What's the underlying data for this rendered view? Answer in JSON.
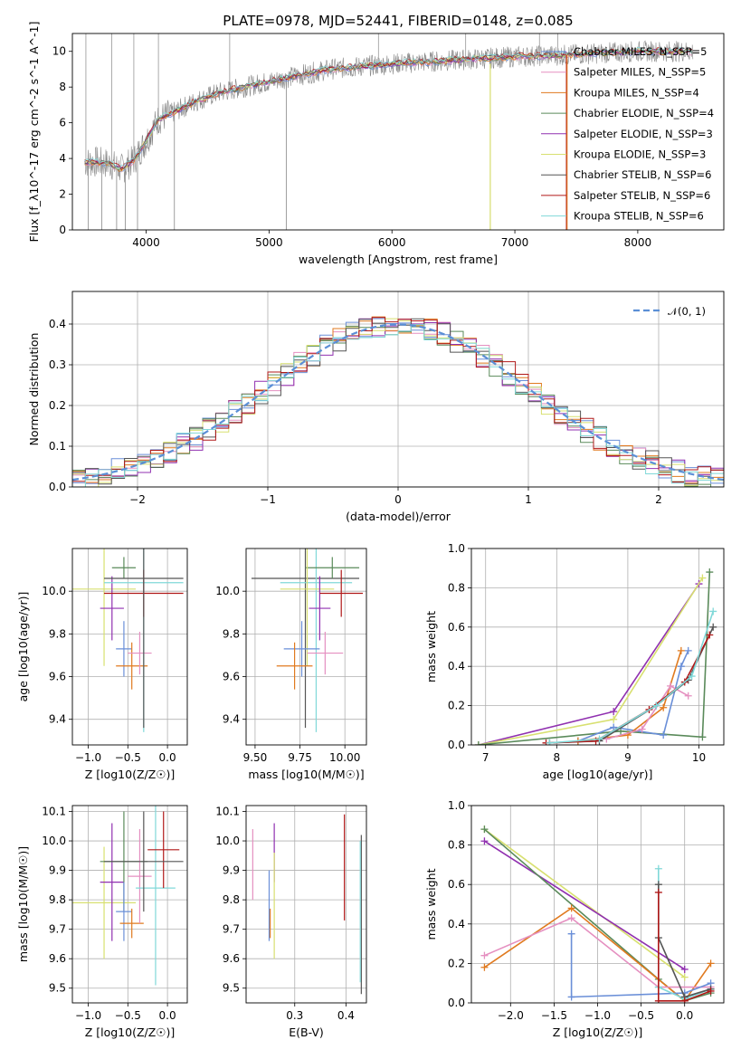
{
  "figure_title": "PLATE=0978, MJD=52441, FIBERID=0148, z=0.085",
  "colors": {
    "chabrier_miles": "#6a8fd8",
    "salpeter_miles": "#e58fc0",
    "kroupa_miles": "#e07a1f",
    "chabrier_elodie": "#5a8a5a",
    "salpeter_elodie": "#9030b0",
    "kroupa_elodie": "#d8e070",
    "chabrier_stelib": "#555555",
    "salpeter_stelib": "#b01818",
    "kroupa_stelib": "#80d8d8",
    "data": "#888888",
    "gauss": "#5b8fd6"
  },
  "chart_data": [
    {
      "id": "spectrum",
      "type": "line",
      "xlabel": "wavelength [Angstrom, rest frame]",
      "ylabel": "Flux [f_λ10^-17 erg cm^-2 s^-1 A^-1]",
      "xlim": [
        3400,
        8700
      ],
      "ylim": [
        0,
        11
      ],
      "xticks": [
        4000,
        5000,
        6000,
        7000,
        8000
      ],
      "yticks": [
        0,
        2,
        4,
        6,
        8,
        10
      ],
      "legend": {
        "position": "right",
        "entries": [
          {
            "name": "Chabrier MILES, N_SSP=5",
            "color_key": "chabrier_miles"
          },
          {
            "name": "Salpeter MILES, N_SSP=5",
            "color_key": "salpeter_miles"
          },
          {
            "name": "Kroupa MILES, N_SSP=4",
            "color_key": "kroupa_miles"
          },
          {
            "name": "Chabrier ELODIE, N_SSP=4",
            "color_key": "chabrier_elodie"
          },
          {
            "name": "Salpeter ELODIE, N_SSP=3",
            "color_key": "salpeter_elodie"
          },
          {
            "name": "Kroupa ELODIE, N_SSP=3",
            "color_key": "kroupa_elodie"
          },
          {
            "name": "Chabrier STELIB, N_SSP=6",
            "color_key": "chabrier_stelib"
          },
          {
            "name": "Salpeter STELIB, N_SSP=6",
            "color_key": "salpeter_stelib"
          },
          {
            "name": "Kroupa STELIB, N_SSP=6",
            "color_key": "kroupa_stelib"
          }
        ]
      },
      "continuum": {
        "x": [
          3500,
          3600,
          3700,
          3800,
          3900,
          4000,
          4100,
          4200,
          4400,
          4600,
          4800,
          5000,
          5200,
          5500,
          6000,
          6500,
          7000,
          7400,
          8000,
          8500
        ],
        "y": [
          3.8,
          3.8,
          3.7,
          3.4,
          3.9,
          5.0,
          6.2,
          6.5,
          7.2,
          7.7,
          8.0,
          8.3,
          8.6,
          9.0,
          9.3,
          9.5,
          9.7,
          9.8,
          10.0,
          10.0
        ]
      },
      "spikes_down": [
        3530,
        3640,
        3760,
        3830,
        3930,
        4230,
        5140,
        6800,
        7420
      ],
      "spikes_up": [
        3510,
        3720,
        3900,
        4100,
        4680,
        5890,
        6600,
        7200,
        7350
      ]
    },
    {
      "id": "residual_hist",
      "type": "bar",
      "xlabel": "(data-model)/error",
      "ylabel": "Normed distribution",
      "xlim": [
        -2.5,
        2.5
      ],
      "ylim": [
        0,
        0.48
      ],
      "xticks": [
        -2,
        -1,
        0,
        1,
        2
      ],
      "yticks": [
        0,
        0.1,
        0.2,
        0.3,
        0.4
      ],
      "grid": true,
      "legend": {
        "position": "top-right",
        "entries": [
          {
            "name": "𝒩(0, 1)",
            "color_key": "gauss",
            "style": "dashed"
          }
        ]
      },
      "bin_width": 0.1,
      "series_colors": [
        "chabrier_miles",
        "salpeter_miles",
        "kroupa_miles",
        "chabrier_elodie",
        "salpeter_elodie",
        "kroupa_elodie",
        "chabrier_stelib",
        "salpeter_stelib",
        "kroupa_stelib"
      ],
      "scatter_amplitude": 0.03
    },
    {
      "id": "age_vs_Z",
      "type": "scatter",
      "xlabel": "Z [log10(Z/Z☉)]",
      "ylabel": "age [log10(age/yr)]",
      "xlim": [
        -1.2,
        0.25
      ],
      "ylim": [
        9.28,
        10.2
      ],
      "xticks": [
        -1.0,
        -0.5,
        0.0
      ],
      "yticks": [
        9.4,
        9.6,
        9.8,
        10.0
      ],
      "grid": true,
      "points": [
        {
          "color_key": "kroupa_elodie",
          "x": -0.8,
          "xerr": 0.4,
          "y": 10.01,
          "yerr": 0.36
        },
        {
          "color_key": "salpeter_elodie",
          "x": -0.7,
          "xerr": 0.15,
          "y": 9.92,
          "yerr": 0.15
        },
        {
          "color_key": "chabrier_elodie",
          "x": -0.55,
          "xerr": 0.15,
          "y": 10.11,
          "yerr": 0.05
        },
        {
          "color_key": "chabrier_miles",
          "x": -0.55,
          "xerr": 0.1,
          "y": 9.73,
          "yerr": 0.13
        },
        {
          "color_key": "kroupa_miles",
          "x": -0.45,
          "xerr": 0.2,
          "y": 9.65,
          "yerr": 0.11
        },
        {
          "color_key": "salpeter_miles",
          "x": -0.35,
          "xerr": 0.15,
          "y": 9.71,
          "yerr": 0.1
        },
        {
          "color_key": "kroupa_stelib",
          "x": -0.3,
          "xerr": 0.5,
          "y": 10.04,
          "yerr": 0.7
        },
        {
          "color_key": "salpeter_stelib",
          "x": -0.3,
          "xerr": 0.5,
          "y": 9.99,
          "yerr": 0.11
        },
        {
          "color_key": "chabrier_stelib",
          "x": -0.3,
          "xerr": 0.5,
          "y": 10.06,
          "yerr": 0.7
        }
      ]
    },
    {
      "id": "age_vs_mass",
      "type": "scatter",
      "xlabel": "mass [log10(M/M☉)]",
      "ylabel": "",
      "xlim": [
        9.45,
        10.12
      ],
      "ylim": [
        9.28,
        10.2
      ],
      "xticks": [
        9.5,
        9.75,
        10.0
      ],
      "yticks": [
        9.4,
        9.6,
        9.8,
        10.0
      ],
      "grid": true,
      "points": [
        {
          "color_key": "chabrier_stelib",
          "x": 9.78,
          "xerr": 0.3,
          "y": 10.06,
          "yerr": 0.7
        },
        {
          "color_key": "kroupa_stelib",
          "x": 9.84,
          "xerr": 0.2,
          "y": 10.04,
          "yerr": 0.7
        },
        {
          "color_key": "chabrier_elodie",
          "x": 9.93,
          "xerr": 0.15,
          "y": 10.11,
          "yerr": 0.05
        },
        {
          "color_key": "kroupa_elodie",
          "x": 9.79,
          "xerr": 0.15,
          "y": 10.01,
          "yerr": 0.36
        },
        {
          "color_key": "salpeter_elodie",
          "x": 9.86,
          "xerr": 0.06,
          "y": 9.92,
          "yerr": 0.15
        },
        {
          "color_key": "salpeter_stelib",
          "x": 9.98,
          "xerr": 0.12,
          "y": 9.99,
          "yerr": 0.11
        },
        {
          "color_key": "chabrier_miles",
          "x": 9.76,
          "xerr": 0.1,
          "y": 9.73,
          "yerr": 0.13
        },
        {
          "color_key": "kroupa_miles",
          "x": 9.72,
          "xerr": 0.1,
          "y": 9.65,
          "yerr": 0.11
        },
        {
          "color_key": "salpeter_miles",
          "x": 9.89,
          "xerr": 0.1,
          "y": 9.71,
          "yerr": 0.1
        }
      ]
    },
    {
      "id": "weight_vs_age",
      "type": "line",
      "xlabel": "age [log10(age/yr)]",
      "ylabel": "mass weight",
      "xlim": [
        6.8,
        10.35
      ],
      "ylim": [
        0,
        1.0
      ],
      "xticks": [
        7,
        8,
        9,
        10
      ],
      "yticks": [
        0,
        0.2,
        0.4,
        0.6,
        0.8,
        1.0
      ],
      "grid": true,
      "series": [
        {
          "color_key": "salpeter_elodie",
          "x": [
            6.9,
            8.8,
            10.0
          ],
          "y": [
            0.0,
            0.17,
            0.82
          ]
        },
        {
          "color_key": "kroupa_elodie",
          "x": [
            6.9,
            8.8,
            10.05
          ],
          "y": [
            0.0,
            0.13,
            0.85
          ]
        },
        {
          "color_key": "chabrier_elodie",
          "x": [
            6.9,
            8.9,
            10.05,
            10.15
          ],
          "y": [
            0.0,
            0.07,
            0.04,
            0.88
          ]
        },
        {
          "color_key": "chabrier_miles",
          "x": [
            8.3,
            8.8,
            9.5,
            9.75,
            9.85
          ],
          "y": [
            0.02,
            0.09,
            0.05,
            0.4,
            0.48
          ]
        },
        {
          "color_key": "kroupa_miles",
          "x": [
            8.3,
            9.0,
            9.5,
            9.75
          ],
          "y": [
            0.02,
            0.05,
            0.19,
            0.48
          ]
        },
        {
          "color_key": "salpeter_miles",
          "x": [
            8.7,
            9.2,
            9.6,
            9.85
          ],
          "y": [
            0.03,
            0.08,
            0.3,
            0.25
          ]
        },
        {
          "color_key": "chabrier_stelib",
          "x": [
            7.9,
            8.6,
            9.4,
            9.85,
            10.2
          ],
          "y": [
            0.01,
            0.02,
            0.2,
            0.33,
            0.6
          ]
        },
        {
          "color_key": "salpeter_stelib",
          "x": [
            7.85,
            8.55,
            9.3,
            9.8,
            10.15
          ],
          "y": [
            0.01,
            0.02,
            0.18,
            0.32,
            0.56
          ]
        },
        {
          "color_key": "kroupa_stelib",
          "x": [
            7.9,
            8.6,
            9.4,
            9.9,
            10.2
          ],
          "y": [
            0.01,
            0.03,
            0.2,
            0.35,
            0.68
          ]
        }
      ]
    },
    {
      "id": "mass_vs_Z",
      "type": "scatter",
      "xlabel": "Z [log10(Z/Z☉)]",
      "ylabel": "mass [log10(M/M☉)]",
      "xlim": [
        -1.2,
        0.25
      ],
      "ylim": [
        9.45,
        10.12
      ],
      "xticks": [
        -1.0,
        -0.5,
        0.0
      ],
      "yticks": [
        9.5,
        9.6,
        9.7,
        9.8,
        9.9,
        10.0,
        10.1
      ],
      "grid": true,
      "points": [
        {
          "color_key": "kroupa_elodie",
          "x": -0.8,
          "xerr": 0.4,
          "y": 9.79,
          "yerr": 0.19
        },
        {
          "color_key": "salpeter_elodie",
          "x": -0.7,
          "xerr": 0.15,
          "y": 9.86,
          "yerr": 0.2
        },
        {
          "color_key": "chabrier_elodie",
          "x": -0.55,
          "xerr": 0.3,
          "y": 9.93,
          "yerr": 0.17
        },
        {
          "color_key": "chabrier_miles",
          "x": -0.55,
          "xerr": 0.1,
          "y": 9.76,
          "yerr": 0.1
        },
        {
          "color_key": "kroupa_miles",
          "x": -0.45,
          "xerr": 0.15,
          "y": 9.72,
          "yerr": 0.05
        },
        {
          "color_key": "salpeter_miles",
          "x": -0.35,
          "xerr": 0.15,
          "y": 9.88,
          "yerr": 0.16
        },
        {
          "color_key": "kroupa_stelib",
          "x": -0.15,
          "xerr": 0.25,
          "y": 9.84,
          "yerr": 0.33
        },
        {
          "color_key": "salpeter_stelib",
          "x": -0.05,
          "xerr": 0.2,
          "y": 9.97,
          "yerr": 0.13
        },
        {
          "color_key": "chabrier_stelib",
          "x": -0.3,
          "xerr": 0.5,
          "y": 9.93,
          "yerr": 0.17
        }
      ]
    },
    {
      "id": "mass_vs_ebv",
      "type": "scatter",
      "xlabel": "E(B-V)",
      "ylabel": "",
      "xlim": [
        0.205,
        0.44
      ],
      "ylim": [
        9.45,
        10.12
      ],
      "xticks": [
        0.3,
        0.4
      ],
      "yticks": [
        9.5,
        9.6,
        9.7,
        9.8,
        9.9,
        10.0,
        10.1
      ],
      "grid": true,
      "points": [
        {
          "color_key": "salpeter_miles",
          "x": 0.218,
          "xerr": 0,
          "y": 9.92,
          "yerr": 0.12
        },
        {
          "color_key": "kroupa_miles",
          "x": 0.252,
          "xerr": 0,
          "y": 9.72,
          "yerr": 0.05
        },
        {
          "color_key": "chabrier_miles",
          "x": 0.25,
          "xerr": 0,
          "y": 9.78,
          "yerr": 0.12
        },
        {
          "color_key": "salpeter_elodie",
          "x": 0.26,
          "xerr": 0,
          "y": 9.96,
          "yerr": 0.1
        },
        {
          "color_key": "kroupa_elodie",
          "x": 0.26,
          "xerr": 0,
          "y": 9.78,
          "yerr": 0.18
        },
        {
          "color_key": "salpeter_stelib",
          "x": 0.397,
          "xerr": 0,
          "y": 9.91,
          "yerr": 0.18
        },
        {
          "color_key": "chabrier_stelib",
          "x": 0.43,
          "xerr": 0,
          "y": 9.75,
          "yerr": 0.27
        },
        {
          "color_key": "kroupa_stelib",
          "x": 0.428,
          "xerr": 0,
          "y": 9.76,
          "yerr": 0.24
        }
      ]
    },
    {
      "id": "weight_vs_Z",
      "type": "line",
      "xlabel": "Z [log10(Z/Z☉)]",
      "ylabel": "mass weight",
      "xlim": [
        -2.45,
        0.45
      ],
      "ylim": [
        0,
        1.0
      ],
      "xticks": [
        -2.0,
        -1.5,
        -1.0,
        -0.5,
        0.0
      ],
      "yticks": [
        0,
        0.2,
        0.4,
        0.6,
        0.8,
        1.0
      ],
      "grid": true,
      "series": [
        {
          "color_key": "kroupa_elodie",
          "x": [
            -2.3,
            0.0
          ],
          "y": [
            0.88,
            0.13
          ]
        },
        {
          "color_key": "salpeter_elodie",
          "x": [
            -2.3,
            0.0
          ],
          "y": [
            0.82,
            0.17
          ]
        },
        {
          "color_key": "chabrier_elodie",
          "x": [
            -2.3,
            -0.3,
            0.0,
            0.3
          ],
          "y": [
            0.88,
            0.12,
            0.01,
            0.05
          ]
        },
        {
          "color_key": "kroupa_miles",
          "x": [
            -2.3,
            -1.3,
            0.0,
            0.3
          ],
          "y": [
            0.18,
            0.48,
            0.01,
            0.2
          ]
        },
        {
          "color_key": "salpeter_miles",
          "x": [
            -2.3,
            -1.3,
            -0.3,
            0.3
          ],
          "y": [
            0.24,
            0.43,
            0.08,
            0.08
          ]
        },
        {
          "color_key": "chabrier_miles",
          "x": [
            -1.3,
            -1.3,
            0.0,
            0.3
          ],
          "y": [
            0.35,
            0.03,
            0.05,
            0.1
          ]
        },
        {
          "color_key": "kroupa_stelib",
          "x": [
            -0.3,
            -0.3,
            0.0,
            0.3
          ],
          "y": [
            0.68,
            0.08,
            0.02,
            0.07
          ]
        },
        {
          "color_key": "chabrier_stelib",
          "x": [
            -0.3,
            -0.3,
            0.0,
            0.3
          ],
          "y": [
            0.6,
            0.33,
            0.03,
            0.07
          ]
        },
        {
          "color_key": "salpeter_stelib",
          "x": [
            -0.3,
            -0.3,
            0.0,
            0.3
          ],
          "y": [
            0.56,
            0.01,
            0.01,
            0.06
          ]
        }
      ]
    }
  ]
}
